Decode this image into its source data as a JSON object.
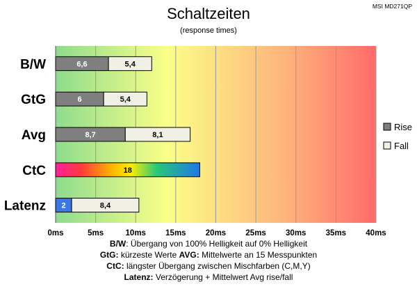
{
  "chart_data": {
    "type": "bar",
    "stacked": true,
    "orientation": "horizontal",
    "title": "Schaltzeiten",
    "subtitle": "(response times)",
    "monitor": "MSI MD271QP",
    "categories": [
      "B/W",
      "GtG",
      "Avg",
      "CtC",
      "Latenz"
    ],
    "series": [
      {
        "name": "Rise",
        "color": "#7f7f7f",
        "values": [
          6.6,
          6,
          8.7,
          18,
          2
        ],
        "labels": [
          "6,6",
          "6",
          "8,7",
          "18",
          "2"
        ]
      },
      {
        "name": "Fall",
        "color": "#f0f0e4",
        "values": [
          5.4,
          5.4,
          8.1,
          null,
          8.4
        ],
        "labels": [
          "5,4",
          "5,4",
          "8,1",
          "",
          "8,4"
        ]
      }
    ],
    "special_bar_colors": {
      "CtC": "rainbow",
      "Latenz": "#3a78e8"
    },
    "xlim": [
      0,
      40
    ],
    "x_tick_labels": [
      "0ms",
      "5ms",
      "10ms",
      "15ms",
      "20ms",
      "25ms",
      "30ms",
      "35ms",
      "40ms"
    ],
    "background_gradient": [
      "#8fdf8f",
      "#fbff88",
      "#ffb27a",
      "#ff6a6a"
    ],
    "grid": true,
    "legend_position": "right"
  },
  "notes": [
    {
      "bold": "B/W",
      "text": ":  Übergang von 100% Helligkeit auf 0% Helligkeit"
    },
    {
      "bold": "GtG:",
      "text": " kürzeste  Werte",
      "bold2": "AVG:",
      "text2": " Mittelwerte  an 15 Messpunkten"
    },
    {
      "bold": "CtC:",
      "text": " längster Übergang  zwischen Mischfarben (C,M,Y)"
    },
    {
      "bold": "Latenz:",
      "text": " Verzögerung  + Mittelwert Avg rise/fall"
    }
  ]
}
